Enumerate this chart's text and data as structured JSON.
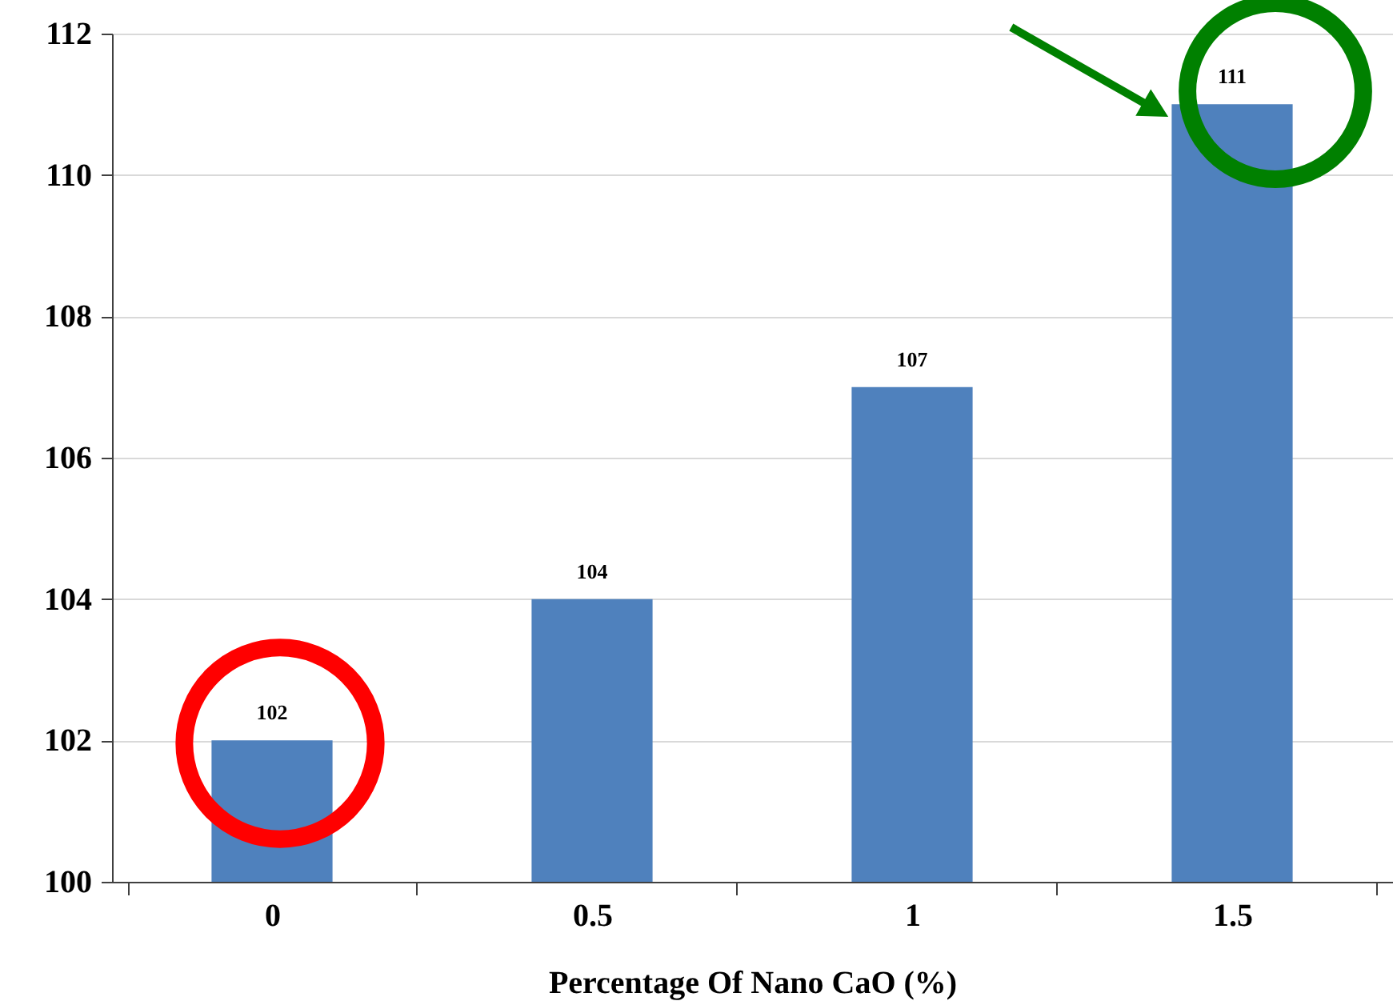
{
  "chart_data": {
    "type": "bar",
    "xlabel": "Percentage Of Nano CaO (%)",
    "categories": [
      "0",
      "0.5",
      "1",
      "1.5"
    ],
    "values": [
      102,
      104,
      107,
      111
    ],
    "color": "#4f81bd",
    "ylim": [
      100,
      112
    ],
    "yticks": [
      100,
      102,
      104,
      106,
      108,
      110,
      112
    ],
    "grid": "y",
    "data_labels": true
  }
}
